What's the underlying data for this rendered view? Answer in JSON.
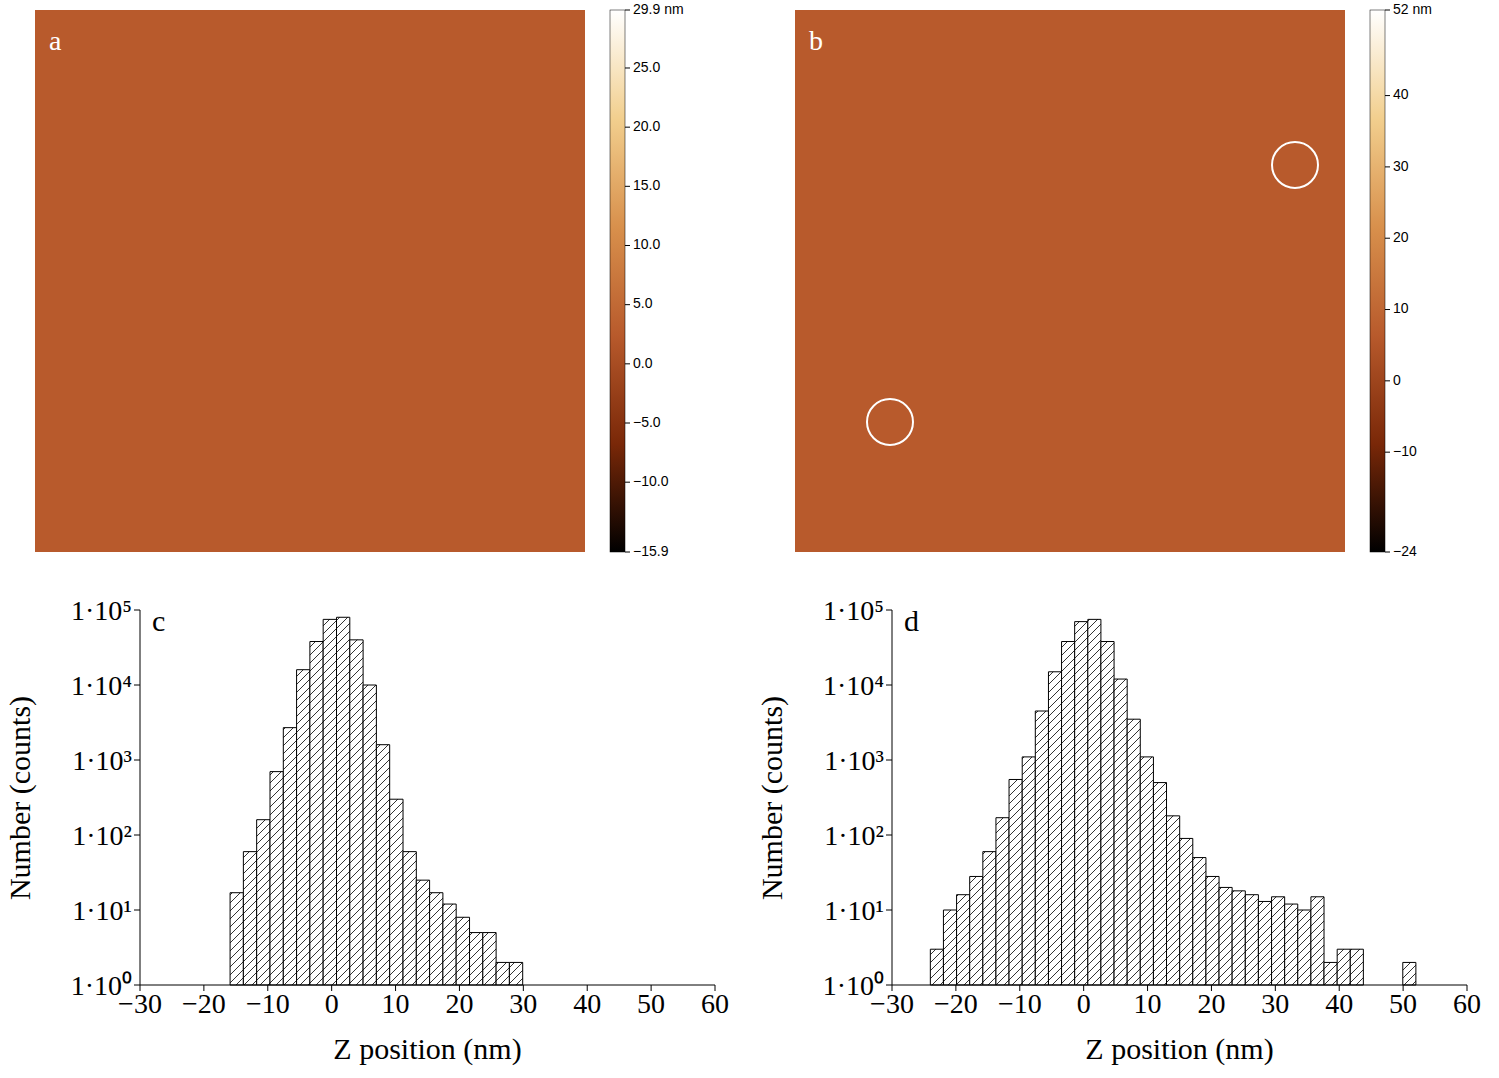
{
  "chart_data": [
    {
      "type": "heatmap",
      "title": "a",
      "colorscale": [
        "#000000",
        "#7a2808",
        "#b85a2c",
        "#d8904c",
        "#f2cf8e",
        "#ffffff"
      ],
      "colorbar_range": [
        -15.9,
        29.9
      ],
      "colorbar_ticks": [
        {
          "value": -15.9,
          "label": "−15.9"
        },
        {
          "value": -10,
          "label": "−10.0"
        },
        {
          "value": -5,
          "label": "−5.0"
        },
        {
          "value": 0,
          "label": "0.0"
        },
        {
          "value": 5,
          "label": "5.0"
        },
        {
          "value": 10,
          "label": "10.0"
        },
        {
          "value": 15,
          "label": "15.0"
        },
        {
          "value": 20,
          "label": "20.0"
        },
        {
          "value": 25,
          "label": "25.0"
        },
        {
          "value": 29.9,
          "label": "29.9 nm"
        }
      ]
    },
    {
      "type": "heatmap",
      "title": "b",
      "colorscale": [
        "#000000",
        "#7a2808",
        "#b85a2c",
        "#d8904c",
        "#f2cf8e",
        "#ffffff"
      ],
      "colorbar_range": [
        -24,
        52
      ],
      "colorbar_ticks": [
        {
          "value": -24,
          "label": "−24"
        },
        {
          "value": -10,
          "label": "−10"
        },
        0,
        10,
        20,
        30,
        40,
        {
          "value": 52,
          "label": "52 nm"
        }
      ]
    },
    {
      "type": "histogram",
      "title": "c",
      "xlabel": "Z position (nm)",
      "ylabel": "Number (counts)",
      "color": "#000000",
      "log": "y",
      "bins": [
        -15.9,
        -13.82,
        -11.74,
        -9.65,
        -7.57,
        -5.49,
        -3.41,
        -1.33,
        0.76,
        2.84,
        4.92,
        7.0,
        9.08,
        11.17,
        13.25,
        15.33,
        17.41,
        19.49,
        21.58,
        23.66,
        25.74,
        27.82,
        29.9
      ],
      "values": [
        17,
        60,
        160,
        700,
        2700,
        16000,
        38000,
        75000,
        80000,
        40000,
        10000,
        1600,
        300,
        60,
        25,
        17,
        12,
        8,
        5,
        5,
        2,
        2
      ],
      "xlim": [
        -30,
        60
      ],
      "xticks": [
        {
          "value": -30,
          "label": "−30"
        },
        {
          "value": -20,
          "label": "−20"
        },
        {
          "value": -10,
          "label": "−10"
        },
        0,
        10,
        20,
        30,
        40,
        50,
        60
      ],
      "ylim": [
        1,
        100000
      ],
      "yticks": [
        {
          "value": 1,
          "label": "1·10⁰"
        },
        {
          "value": 10,
          "label": "1·10¹"
        },
        {
          "value": 100,
          "label": "1·10²"
        },
        {
          "value": 1000,
          "label": "1·10³"
        },
        {
          "value": 10000,
          "label": "1·10⁴"
        },
        {
          "value": 100000,
          "label": "1·10⁵"
        }
      ]
    },
    {
      "type": "histogram",
      "title": "d",
      "xlabel": "Z position (nm)",
      "ylabel": "Number (counts)",
      "color": "#000000",
      "log": "y",
      "bins": [
        -24,
        -21.95,
        -19.89,
        -17.84,
        -15.78,
        -13.73,
        -11.68,
        -9.62,
        -7.57,
        -5.51,
        -3.46,
        -1.41,
        0.65,
        2.7,
        4.76,
        6.81,
        8.86,
        10.92,
        12.97,
        15.03,
        17.08,
        19.14,
        21.19,
        23.24,
        25.3,
        27.35,
        29.41,
        31.46,
        33.51,
        35.57,
        37.62,
        39.68,
        41.73,
        43.78,
        45.84,
        47.89,
        49.95,
        52
      ],
      "values": [
        3,
        10,
        16,
        28,
        60,
        170,
        550,
        1100,
        4500,
        15000,
        38000,
        70000,
        75000,
        38000,
        12000,
        3500,
        1100,
        500,
        180,
        90,
        50,
        28,
        20,
        18,
        16,
        13,
        15,
        12,
        10,
        15,
        2,
        3,
        3,
        null,
        null,
        null,
        2
      ],
      "xlim": [
        -30,
        60
      ],
      "xticks": [
        {
          "value": -30,
          "label": "−30"
        },
        {
          "value": -20,
          "label": "−20"
        },
        {
          "value": -10,
          "label": "−10"
        },
        0,
        10,
        20,
        30,
        40,
        50,
        60
      ],
      "ylim": [
        1,
        100000
      ],
      "yticks": [
        {
          "value": 1,
          "label": "1·10⁰"
        },
        {
          "value": 10,
          "label": "1·10¹"
        },
        {
          "value": 100,
          "label": "1·10²"
        },
        {
          "value": 1000,
          "label": "1·10³"
        },
        {
          "value": 10000,
          "label": "1·10⁴"
        },
        {
          "value": 100000,
          "label": "1·10⁵"
        }
      ]
    }
  ]
}
